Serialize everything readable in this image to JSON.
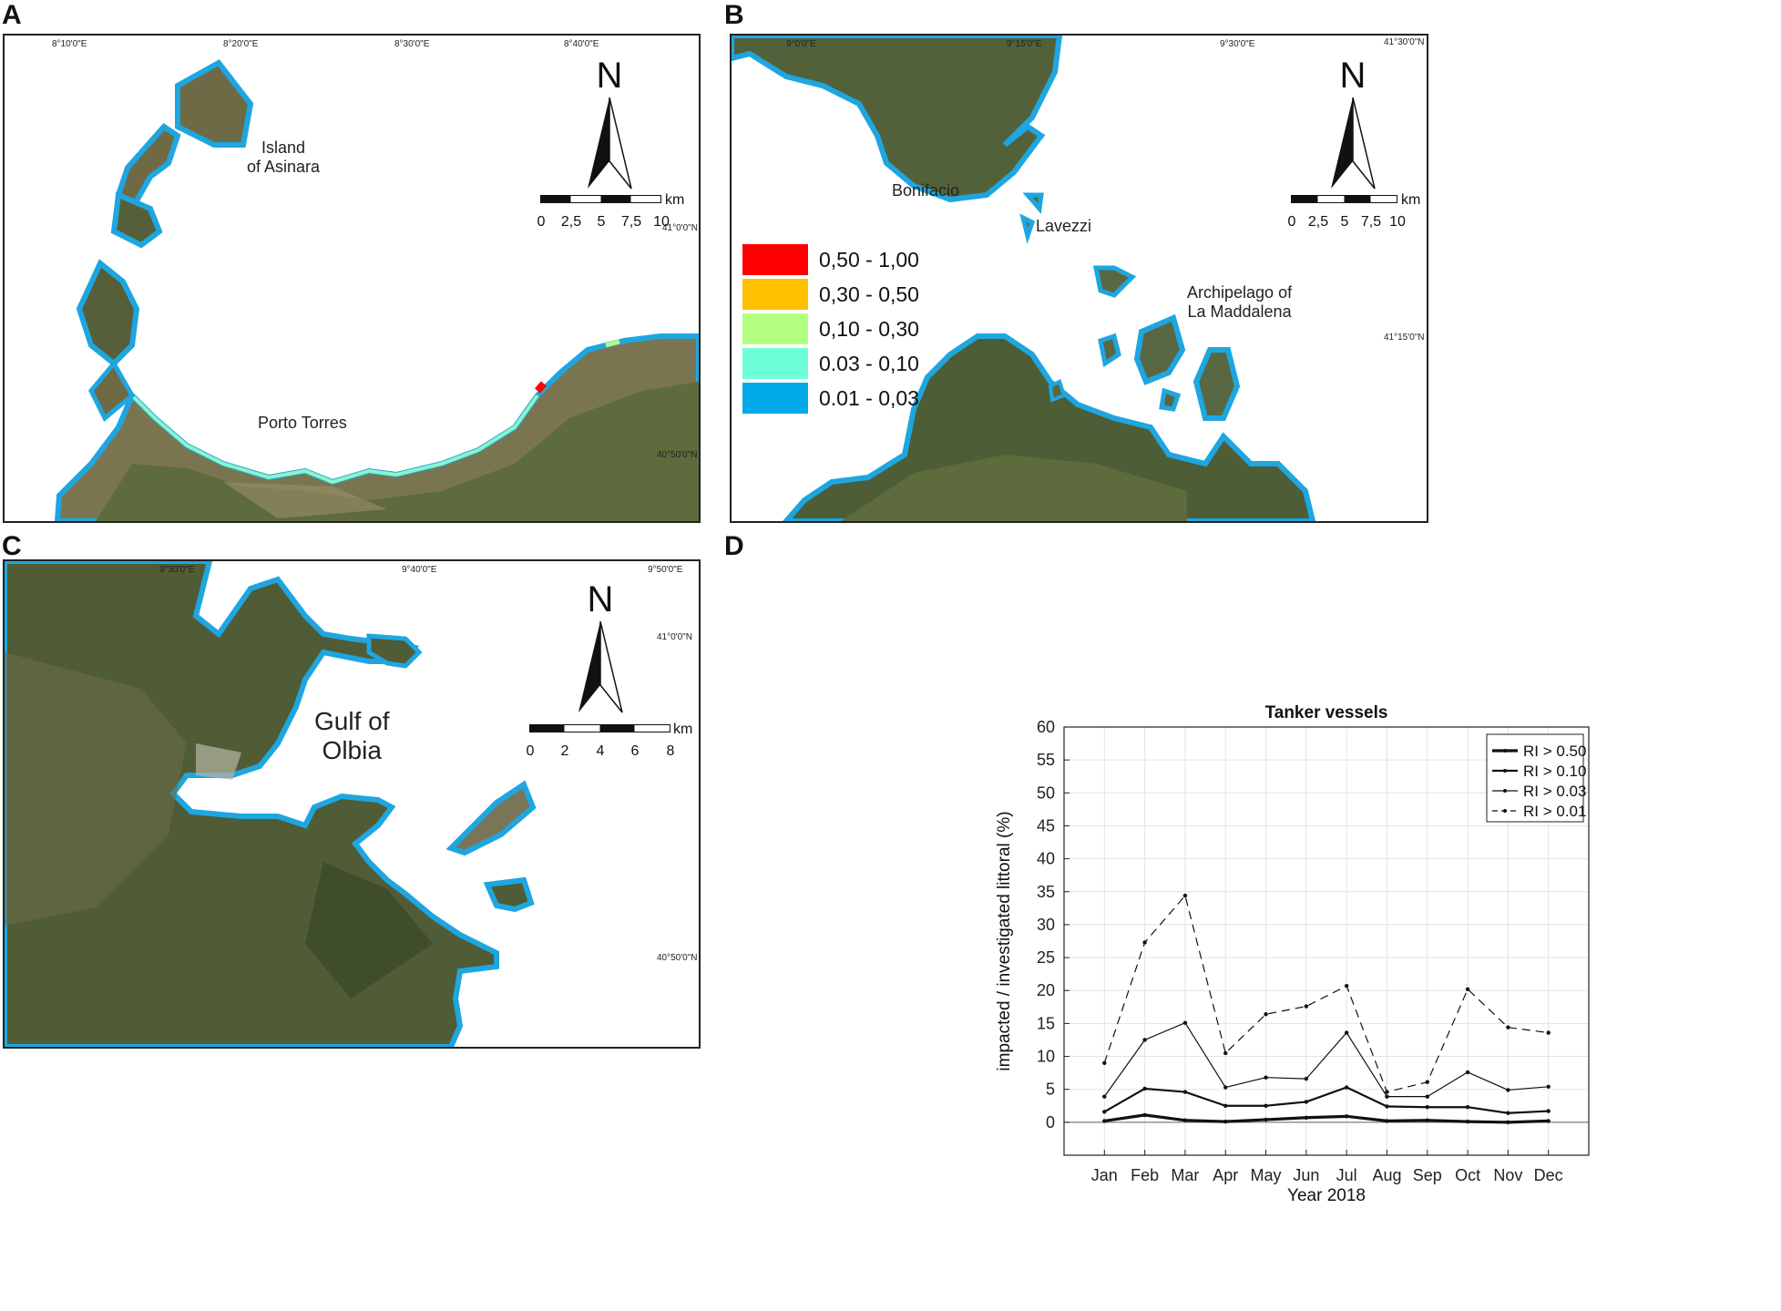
{
  "panels": {
    "A": {
      "letter": "A",
      "coords_top": [
        "8°10'0\"E",
        "8°20'0\"E",
        "8°30'0\"E",
        "8°40'0\"E"
      ],
      "coords_right": [
        "41°0'0\"N",
        "40°50'0\"N"
      ],
      "places": {
        "asinara": "Island\nof Asinara",
        "porto_torres": "Porto Torres"
      },
      "north": "N",
      "scale": {
        "ticks": [
          "0",
          "2,5",
          "5",
          "7,5",
          "10"
        ],
        "unit": "km"
      }
    },
    "B": {
      "letter": "B",
      "coords_top": [
        "9°0'0\"E",
        "9°15'0\"E",
        "9°30'0\"E",
        "41°30'0\"N"
      ],
      "coords_right": [
        "41°15'0\"N"
      ],
      "places": {
        "bonifacio": "Bonifacio",
        "lavezzi": "Lavezzi",
        "maddalena": "Archipelago of\nLa Maddalena"
      },
      "north": "N",
      "scale": {
        "ticks": [
          "0",
          "2,5",
          "5",
          "7,5",
          "10"
        ],
        "unit": "km"
      },
      "legend": [
        {
          "label": "0,50 - 1,00",
          "color": "#ff0000"
        },
        {
          "label": "0,30 - 0,50",
          "color": "#ffc000"
        },
        {
          "label": "0,10 - 0,30",
          "color": "#b3ff80"
        },
        {
          "label": "0.03 - 0,10",
          "color": "#6fffd8"
        },
        {
          "label": "0.01 - 0,03",
          "color": "#00a8e8"
        }
      ]
    },
    "C": {
      "letter": "C",
      "coords_top": [
        "9°30'0\"E",
        "9°40'0\"E",
        "9°50'0\"E"
      ],
      "coords_right": [
        "41°0'0\"N",
        "40°50'0\"N"
      ],
      "places": {
        "gulf": "Gulf of\nOlbia"
      },
      "north": "N",
      "scale": {
        "ticks": [
          "0",
          "2",
          "4",
          "6",
          "8"
        ],
        "unit": "km"
      }
    },
    "D": {
      "letter": "D"
    }
  },
  "colors": {
    "coast": "#1ea6e0",
    "land": "#5e6b3c",
    "land_dark": "#3f4f2c",
    "sea": "#ffffff"
  },
  "chart_data": {
    "type": "line",
    "title": "Tanker vessels",
    "xlabel": "Year 2018",
    "ylabel": "impacted / investigated littoral  (%)",
    "categories": [
      "Jan",
      "Feb",
      "Mar",
      "Apr",
      "May",
      "Jun",
      "Jul",
      "Aug",
      "Sep",
      "Oct",
      "Nov",
      "Dec"
    ],
    "ylim": [
      -5,
      60
    ],
    "yticks": [
      0,
      5,
      10,
      15,
      20,
      25,
      30,
      35,
      40,
      45,
      50,
      55,
      60
    ],
    "grid": true,
    "legend_position": "top-right",
    "series": [
      {
        "name": "RI > 0.50",
        "style": "thick",
        "values": [
          0.2,
          1.1,
          0.3,
          0.1,
          0.4,
          0.7,
          0.9,
          0.2,
          0.3,
          0.1,
          0.0,
          0.2
        ]
      },
      {
        "name": "RI > 0.10",
        "style": "medium",
        "values": [
          1.6,
          5.1,
          4.6,
          2.5,
          2.5,
          3.1,
          5.3,
          2.4,
          2.3,
          2.3,
          1.4,
          1.7
        ]
      },
      {
        "name": "RI > 0.03",
        "style": "thin",
        "values": [
          3.9,
          12.5,
          15.1,
          5.3,
          6.8,
          6.6,
          13.6,
          3.9,
          3.9,
          7.6,
          4.9,
          5.4
        ]
      },
      {
        "name": "RI > 0.01",
        "style": "dashed",
        "values": [
          9.0,
          27.3,
          34.4,
          10.5,
          16.4,
          17.6,
          20.7,
          4.6,
          6.1,
          20.2,
          14.4,
          13.6
        ]
      }
    ]
  }
}
